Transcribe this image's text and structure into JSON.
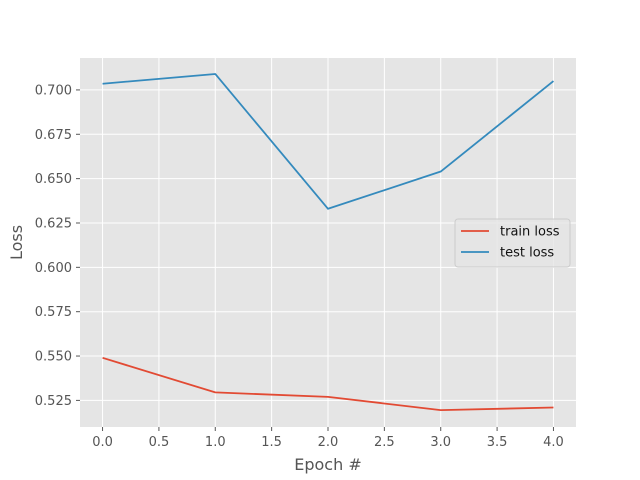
{
  "chart_data": {
    "type": "line",
    "title": "",
    "xlabel": "Epoch #",
    "ylabel": "Loss",
    "x": [
      0,
      1,
      2,
      3,
      4
    ],
    "xlim": [
      -0.2,
      4.2
    ],
    "ylim": [
      0.51,
      0.718
    ],
    "xticks": [
      0.0,
      0.5,
      1.0,
      1.5,
      2.0,
      2.5,
      3.0,
      3.5,
      4.0
    ],
    "xtick_labels": [
      "0.0",
      "0.5",
      "1.0",
      "1.5",
      "2.0",
      "2.5",
      "3.0",
      "3.5",
      "4.0"
    ],
    "yticks": [
      0.525,
      0.55,
      0.575,
      0.6,
      0.625,
      0.65,
      0.675,
      0.7
    ],
    "ytick_labels": [
      "0.525",
      "0.550",
      "0.575",
      "0.600",
      "0.625",
      "0.650",
      "0.675",
      "0.700"
    ],
    "grid": true,
    "legend_position": "center-right",
    "background_color": "#e5e5e5",
    "grid_color": "#ffffff",
    "series": [
      {
        "name": "train loss",
        "color": "#e24a33",
        "values": [
          0.549,
          0.5295,
          0.527,
          0.5195,
          0.521
        ]
      },
      {
        "name": "test loss",
        "color": "#348abd",
        "values": [
          0.7035,
          0.709,
          0.633,
          0.654,
          0.705
        ]
      }
    ]
  }
}
